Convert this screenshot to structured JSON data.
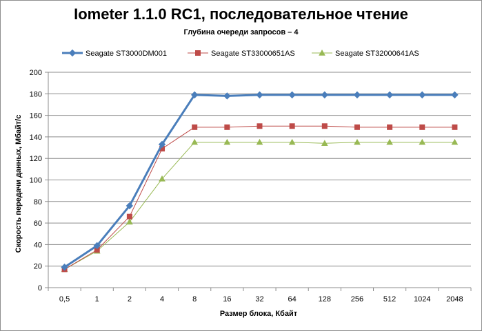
{
  "chart_data": {
    "type": "line",
    "title": "Iometer 1.1.0 RC1, последовательное чтение",
    "subtitle": "Глубина очереди запросов – 4",
    "xlabel": "Размер блока, Кбайт",
    "ylabel": "Скорость передачи данных, Мбайт/с",
    "categories": [
      "0,5",
      "1",
      "2",
      "4",
      "8",
      "16",
      "32",
      "64",
      "128",
      "256",
      "512",
      "1024",
      "2048"
    ],
    "ylim": [
      0,
      200
    ],
    "yticks": [
      0,
      20,
      40,
      60,
      80,
      100,
      120,
      140,
      160,
      180,
      200
    ],
    "grid": true,
    "legend_position": "top",
    "series": [
      {
        "name": "Seagate ST3000DM001",
        "color": "#4a7ebb",
        "marker": "diamond",
        "values": [
          19,
          39,
          76,
          133,
          179,
          178,
          179,
          179,
          179,
          179,
          179,
          179,
          179
        ]
      },
      {
        "name": "Seagate ST33000651AS",
        "color": "#be4b48",
        "marker": "square",
        "values": [
          17,
          35,
          66,
          129,
          149,
          149,
          150,
          150,
          150,
          149,
          149,
          149,
          149
        ]
      },
      {
        "name": "Seagate ST32000641AS",
        "color": "#98b954",
        "marker": "triangle",
        "values": [
          17,
          34,
          61,
          101,
          135,
          135,
          135,
          135,
          134,
          135,
          135,
          135,
          135
        ]
      }
    ]
  }
}
